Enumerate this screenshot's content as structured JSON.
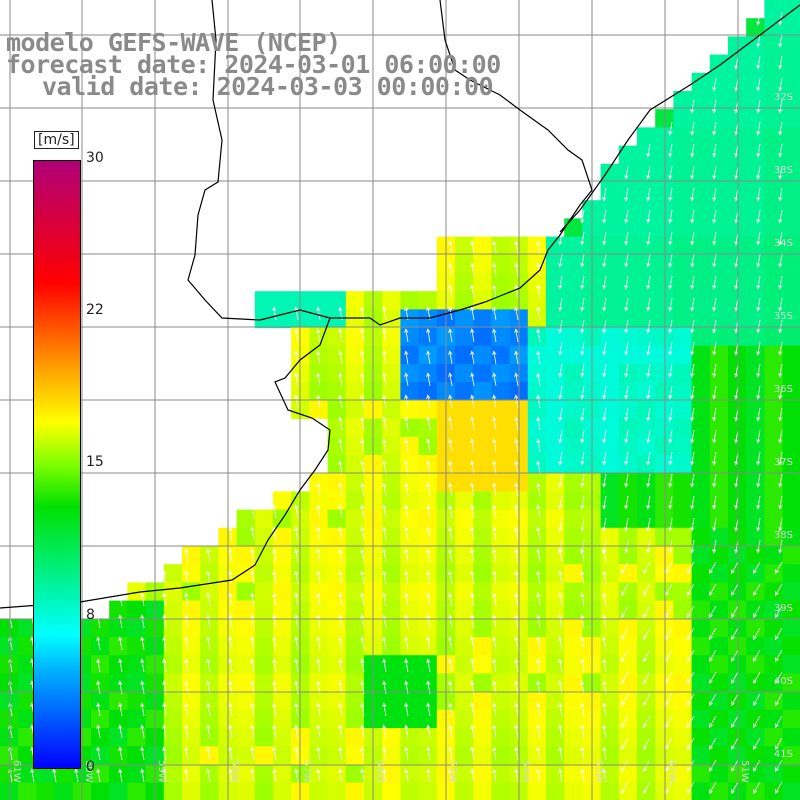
{
  "titles": {
    "line1": "modelo GEFS-WAVE (NCEP)",
    "line2": "forecast date: 2024-03-01 06:00:00",
    "line3": "valid date: 2024-03-03 00:00:00"
  },
  "colorbar": {
    "unit": "[m/s]",
    "ticks": [
      {
        "label": "30",
        "value": 30
      },
      {
        "label": "22",
        "value": 22
      },
      {
        "label": "15",
        "value": 15
      },
      {
        "label": "8",
        "value": 8
      },
      {
        "label": "0",
        "value": 0
      }
    ],
    "colors": [
      "#0000ff",
      "#00b0ff",
      "#00ffff",
      "#00e000",
      "#7fff00",
      "#ffff00",
      "#ffaa00",
      "#ff0000",
      "#b00078"
    ]
  },
  "map": {
    "land_color": "#ffffff",
    "grid_color": "#8a8a8a",
    "coast_color": "#000000",
    "arrow_color": "#ffffff",
    "lon_labels": [
      "61W",
      "60W",
      "59W",
      "58W",
      "57W",
      "56W",
      "55W",
      "54W",
      "53W",
      "52W",
      "51W"
    ],
    "lat_labels": [
      "32S",
      "33S",
      "34S",
      "35S",
      "36S",
      "37S",
      "38S",
      "39S",
      "40S",
      "41S"
    ]
  }
}
